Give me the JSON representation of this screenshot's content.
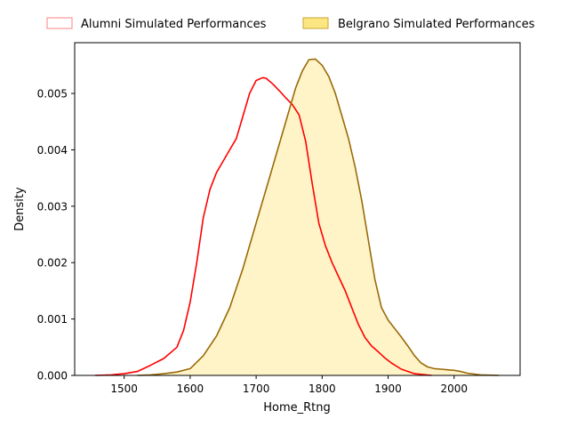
{
  "chart_data": {
    "type": "area",
    "title": "",
    "xlabel": "Home_Rtng",
    "ylabel": "Density",
    "xlim": [
      1425,
      2100
    ],
    "ylim": [
      0,
      0.0059
    ],
    "xticks": [
      1500,
      1600,
      1700,
      1800,
      1900,
      2000
    ],
    "xtick_labels": [
      "1500",
      "1600",
      "1700",
      "1800",
      "1900",
      "2000"
    ],
    "yticks": [
      0,
      0.001,
      0.002,
      0.003,
      0.004,
      0.005
    ],
    "ytick_labels": [
      "0.000",
      "0.001",
      "0.002",
      "0.003",
      "0.004",
      "0.005"
    ],
    "grid": false,
    "legend": {
      "placement": "top-center outside",
      "columns": 2
    },
    "series": [
      {
        "name": "Alumni Simulated Performances",
        "line_color": "#ff0000",
        "fill": false,
        "legend_edge_color": "#ff8080",
        "legend_face_color": "#ffffff",
        "x": [
          1456,
          1480,
          1500,
          1520,
          1540,
          1560,
          1580,
          1590,
          1600,
          1610,
          1620,
          1630,
          1640,
          1650,
          1660,
          1670,
          1680,
          1690,
          1700,
          1710,
          1715,
          1725,
          1735,
          1745,
          1755,
          1765,
          1775,
          1785,
          1795,
          1805,
          1815,
          1825,
          1835,
          1845,
          1855,
          1865,
          1875,
          1885,
          1895,
          1905,
          1920,
          1940,
          1966
        ],
        "y": [
          0.0,
          1e-05,
          3e-05,
          7e-05,
          0.00018,
          0.0003,
          0.0005,
          0.0008,
          0.0013,
          0.002,
          0.0028,
          0.0033,
          0.0036,
          0.0038,
          0.004,
          0.0042,
          0.0046,
          0.005,
          0.00523,
          0.00528,
          0.00527,
          0.00517,
          0.00505,
          0.00492,
          0.0048,
          0.00462,
          0.00415,
          0.0034,
          0.0027,
          0.0023,
          0.002,
          0.00175,
          0.0015,
          0.0012,
          0.0009,
          0.00067,
          0.00052,
          0.00042,
          0.00031,
          0.00022,
          0.00011,
          3e-05,
          0.0
        ]
      },
      {
        "name": "Belgrano Simulated Performances",
        "line_color": "#9a6a08",
        "fill": true,
        "fill_color": "#fff4c8",
        "legend_edge_color": "#c8a432",
        "legend_face_color": "#fce682",
        "x": [
          1520,
          1540,
          1560,
          1580,
          1600,
          1620,
          1640,
          1660,
          1680,
          1700,
          1720,
          1740,
          1760,
          1770,
          1780,
          1790,
          1800,
          1810,
          1820,
          1830,
          1840,
          1850,
          1860,
          1870,
          1880,
          1890,
          1900,
          1910,
          1920,
          1930,
          1940,
          1950,
          1960,
          1970,
          1980,
          1990,
          2000,
          2010,
          2020,
          2040,
          2068
        ],
        "y": [
          0.0,
          1e-05,
          3e-05,
          6e-05,
          0.00012,
          0.00035,
          0.0007,
          0.0012,
          0.0019,
          0.0027,
          0.0035,
          0.0043,
          0.0051,
          0.0054,
          0.0056,
          0.00561,
          0.0055,
          0.0053,
          0.005,
          0.0046,
          0.0042,
          0.0037,
          0.0031,
          0.0024,
          0.0017,
          0.0012,
          0.00098,
          0.00083,
          0.00068,
          0.00052,
          0.00035,
          0.00022,
          0.00015,
          0.00012,
          0.00011,
          0.0001,
          9e-05,
          7e-05,
          4e-05,
          1e-05,
          0.0
        ]
      }
    ]
  }
}
